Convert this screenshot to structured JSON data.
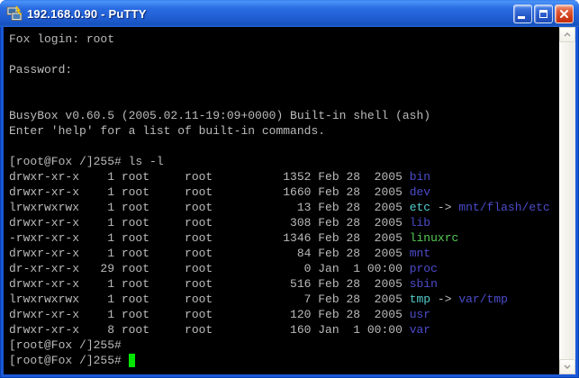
{
  "window": {
    "title": "192.168.0.90 - PuTTY",
    "controls": {
      "minimize": "minimize",
      "maximize": "maximize",
      "close": "close"
    }
  },
  "terminal": {
    "colors": {
      "background": "#000000",
      "foreground": "#bbbbbb",
      "directory": "#4c4ccc",
      "symlink": "#55cccc",
      "executable": "#55cc55",
      "cursor": "#00e400"
    },
    "lines": [
      [
        {
          "t": "Fox login: root"
        }
      ],
      [],
      [
        {
          "t": "Password:"
        }
      ],
      [],
      [],
      [
        {
          "t": "BusyBox v0.60.5 (2005.02.11-19:09+0000) Built-in shell (ash)"
        }
      ],
      [
        {
          "t": "Enter 'help' for a list of built-in commands."
        }
      ],
      [],
      [
        {
          "t": "[root@Fox /]255# ls -l"
        }
      ],
      [
        {
          "t": "drwxr-xr-x    1 root     root          1352 Feb 28  2005 "
        },
        {
          "t": "bin",
          "c": "directory"
        }
      ],
      [
        {
          "t": "drwxr-xr-x    1 root     root          1660 Feb 28  2005 "
        },
        {
          "t": "dev",
          "c": "directory"
        }
      ],
      [
        {
          "t": "lrwxrwxrwx    1 root     root            13 Feb 28  2005 "
        },
        {
          "t": "etc",
          "c": "symlink"
        },
        {
          "t": " -> "
        },
        {
          "t": "mnt/flash/etc",
          "c": "directory"
        }
      ],
      [
        {
          "t": "drwxr-xr-x    1 root     root           308 Feb 28  2005 "
        },
        {
          "t": "lib",
          "c": "directory"
        }
      ],
      [
        {
          "t": "-rwxr-xr-x    1 root     root          1346 Feb 28  2005 "
        },
        {
          "t": "linuxrc",
          "c": "executable"
        }
      ],
      [
        {
          "t": "drwxr-xr-x    1 root     root            84 Feb 28  2005 "
        },
        {
          "t": "mnt",
          "c": "directory"
        }
      ],
      [
        {
          "t": "dr-xr-xr-x   29 root     root             0 Jan  1 00:00 "
        },
        {
          "t": "proc",
          "c": "directory"
        }
      ],
      [
        {
          "t": "drwxr-xr-x    1 root     root           516 Feb 28  2005 "
        },
        {
          "t": "sbin",
          "c": "directory"
        }
      ],
      [
        {
          "t": "lrwxrwxrwx    1 root     root             7 Feb 28  2005 "
        },
        {
          "t": "tmp",
          "c": "symlink"
        },
        {
          "t": " -> "
        },
        {
          "t": "var/tmp",
          "c": "directory"
        }
      ],
      [
        {
          "t": "drwxr-xr-x    1 root     root           120 Feb 28  2005 "
        },
        {
          "t": "usr",
          "c": "directory"
        }
      ],
      [
        {
          "t": "drwxr-xr-x    8 root     root           160 Jan  1 00:00 "
        },
        {
          "t": "var",
          "c": "directory"
        }
      ],
      [
        {
          "t": "[root@Fox /]255#"
        }
      ],
      [
        {
          "t": "[root@Fox /]255# "
        },
        {
          "t": " ",
          "c": "cursor"
        }
      ]
    ]
  }
}
